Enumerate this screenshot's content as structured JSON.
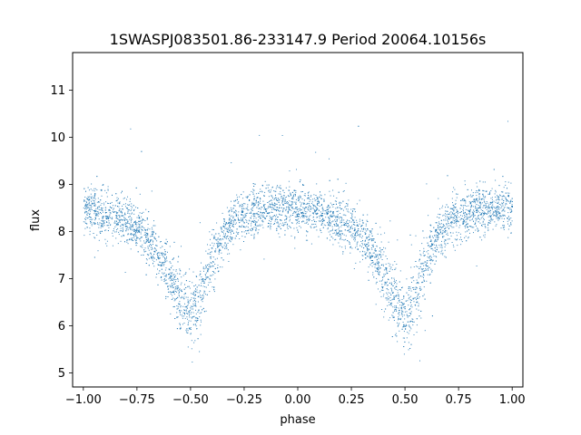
{
  "chart_data": {
    "type": "scatter",
    "title": "1SWASPJ083501.86-233147.9 Period 20064.10156s",
    "xlabel": "phase",
    "ylabel": "flux",
    "xlim": [
      -1.05,
      1.05
    ],
    "ylim": [
      4.7,
      11.8
    ],
    "xticks": [
      -1.0,
      -0.75,
      -0.5,
      -0.25,
      0.0,
      0.25,
      0.5,
      0.75,
      1.0
    ],
    "xtick_labels": [
      "−1.00",
      "−0.75",
      "−0.50",
      "−0.25",
      "0.00",
      "0.25",
      "0.50",
      "0.75",
      "1.00"
    ],
    "yticks": [
      5,
      6,
      7,
      8,
      9,
      10,
      11
    ],
    "ytick_labels": [
      "5",
      "6",
      "7",
      "8",
      "9",
      "10",
      "11"
    ],
    "grid": false,
    "marker_color": "#1f77b4",
    "series": [
      {
        "values_description_free": true,
        "x": [
          -1.0,
          -0.95,
          -0.9,
          -0.85,
          -0.8,
          -0.75,
          -0.7,
          -0.65,
          -0.6,
          -0.55,
          -0.5,
          -0.45,
          -0.4,
          -0.35,
          -0.3,
          -0.25,
          -0.2,
          -0.15,
          -0.1,
          -0.05,
          0.0,
          0.05,
          0.1,
          0.15,
          0.2,
          0.25,
          0.3,
          0.35,
          0.4,
          0.45,
          0.5,
          0.55,
          0.6,
          0.65,
          0.7,
          0.75,
          0.8,
          0.85,
          0.9,
          0.95,
          1.0
        ],
        "y": [
          8.5,
          8.45,
          8.4,
          8.3,
          8.2,
          8.1,
          7.85,
          7.5,
          7.1,
          6.6,
          6.2,
          6.7,
          7.4,
          7.9,
          8.2,
          8.3,
          8.4,
          8.45,
          8.5,
          8.5,
          8.5,
          8.45,
          8.4,
          8.3,
          8.2,
          8.1,
          7.9,
          7.6,
          7.1,
          6.6,
          6.2,
          6.7,
          7.4,
          7.9,
          8.2,
          8.3,
          8.4,
          8.45,
          8.5,
          8.5,
          8.5
        ]
      }
    ]
  }
}
